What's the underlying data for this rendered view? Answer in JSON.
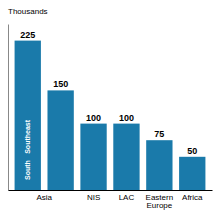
{
  "chart_data": {
    "type": "bar",
    "y_label": "Thousands",
    "categories": [
      "Asia",
      null,
      "NIS",
      "LAC",
      "Eastern\nEurope",
      "Africa"
    ],
    "values": [
      225,
      150,
      100,
      100,
      75,
      50
    ],
    "color": "#1a7aaa",
    "ylim": [
      0,
      250
    ],
    "data_labels": true,
    "tick_labels": "x",
    "annotations": [
      {
        "text": "Southeast",
        "x": 0,
        "y": 80
      },
      {
        "text": "South",
        "x": 0,
        "y": 30
      }
    ]
  }
}
